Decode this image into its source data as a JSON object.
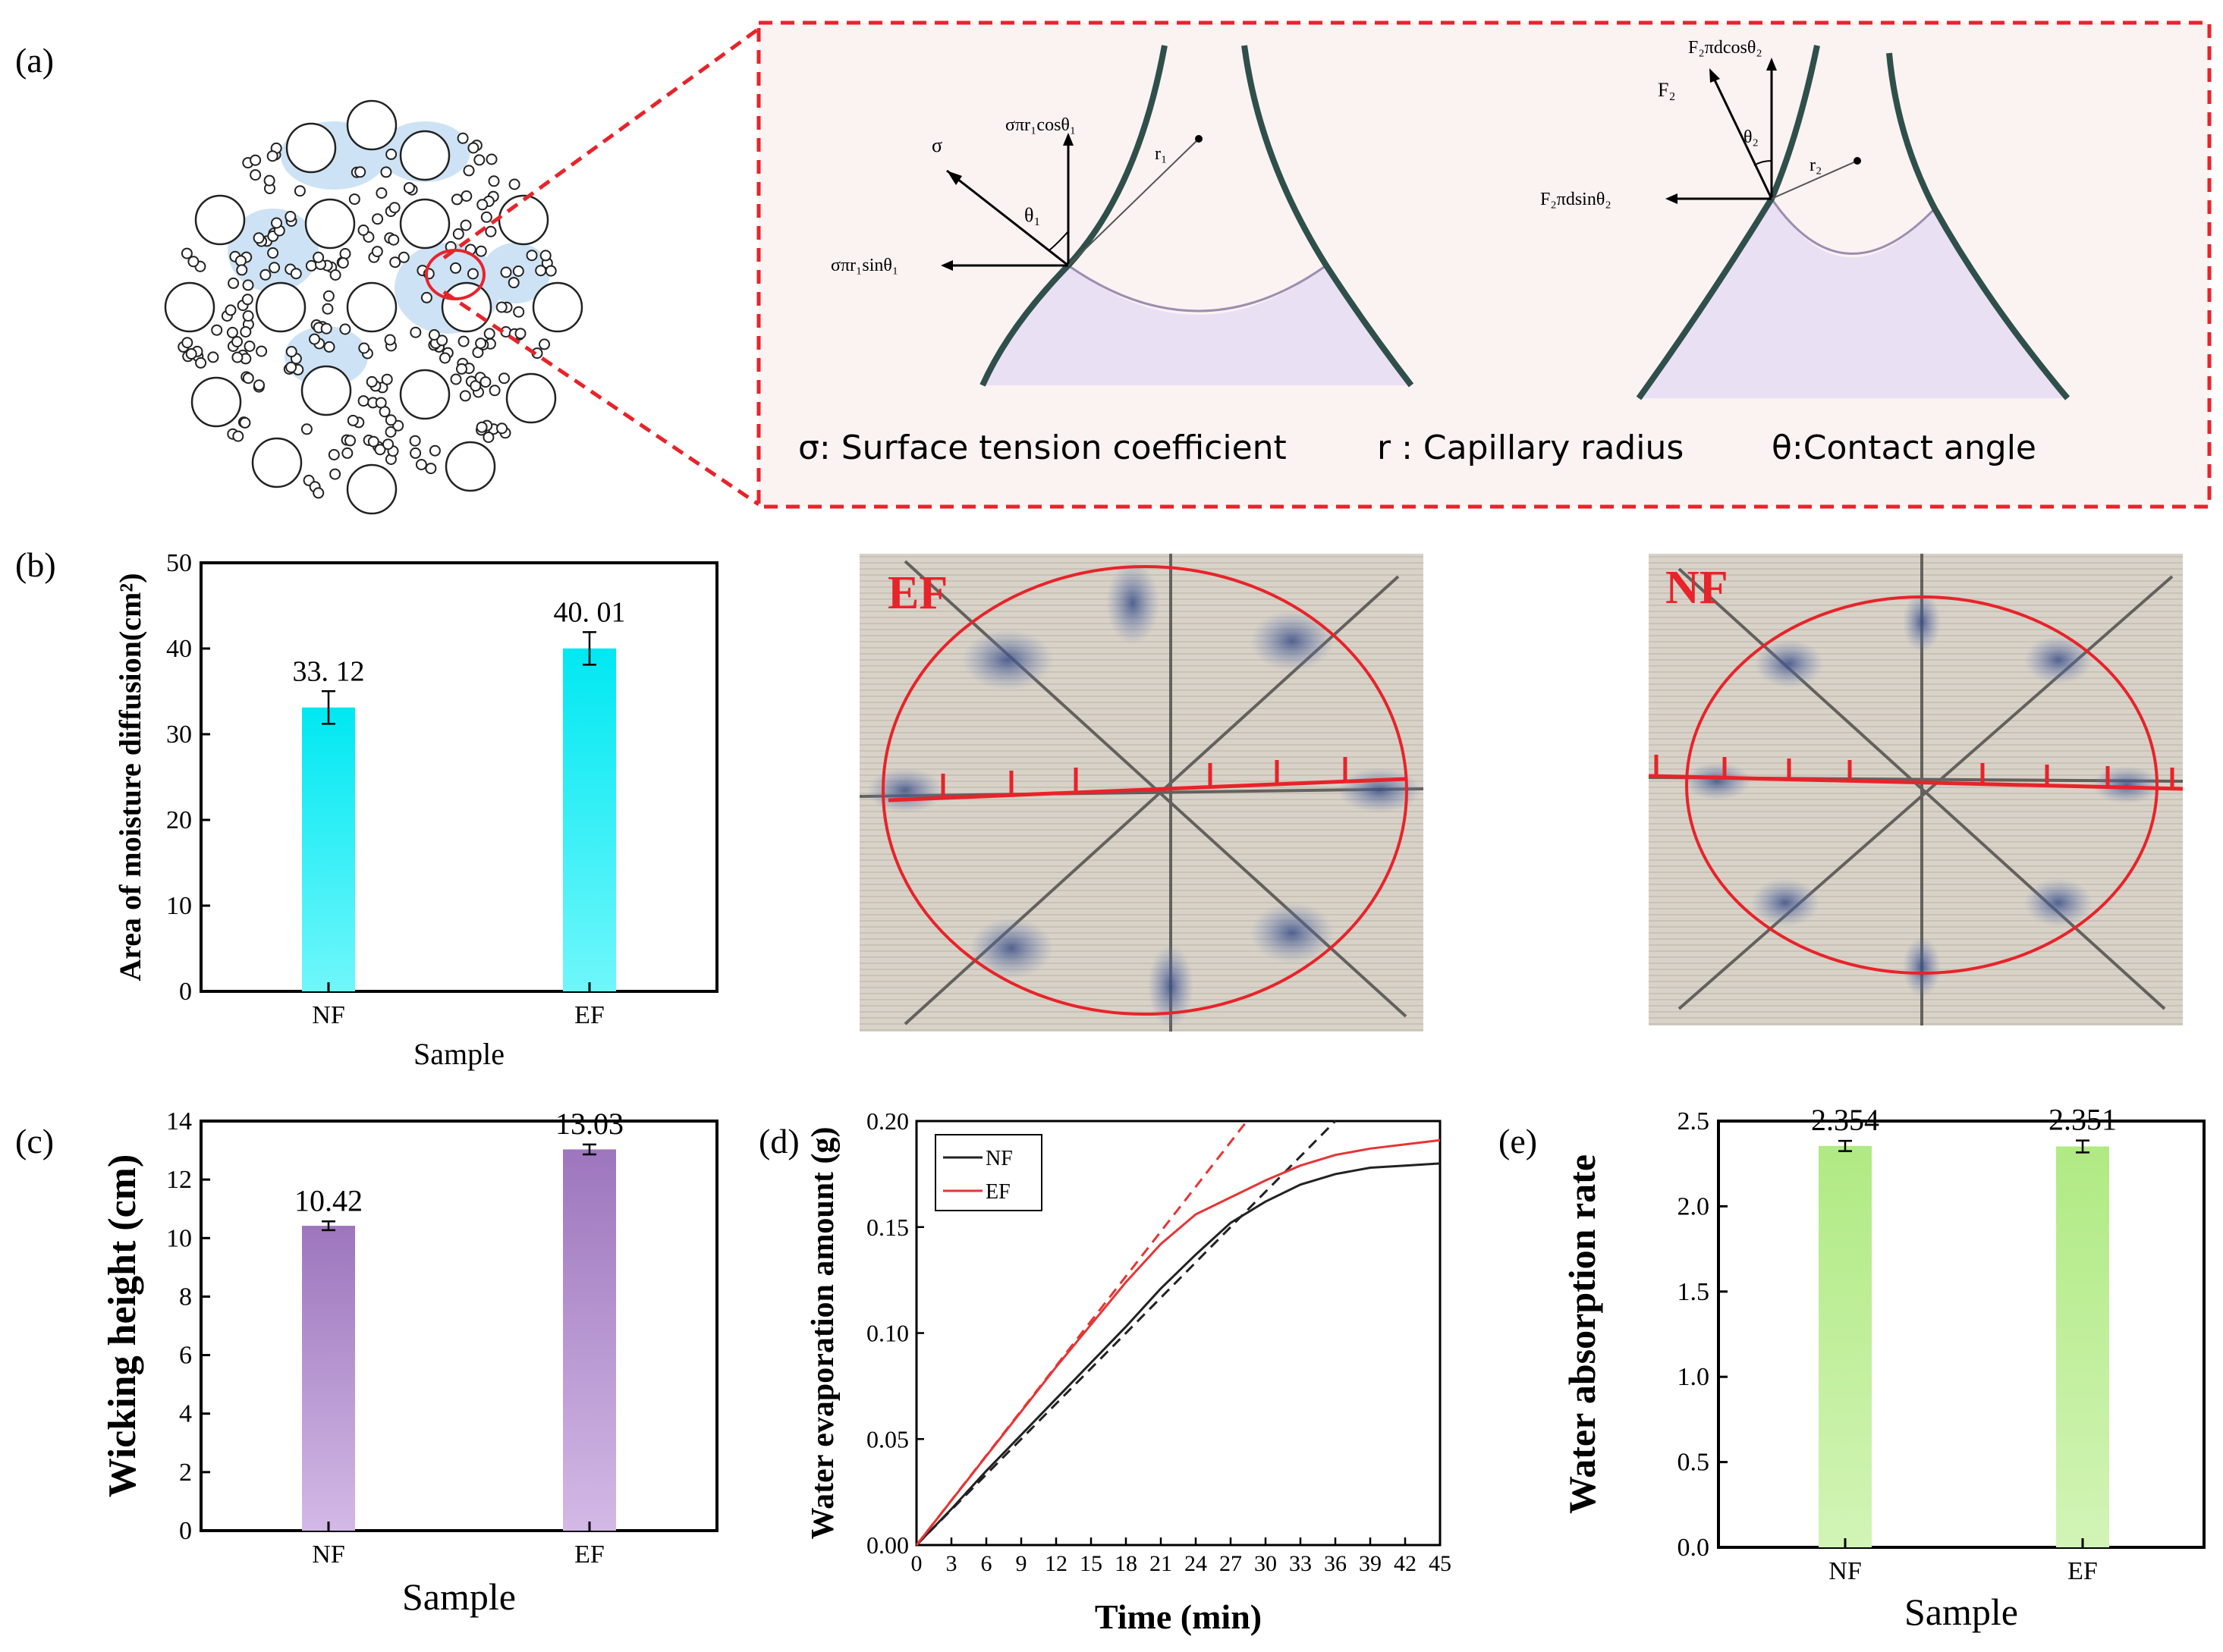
{
  "panels": {
    "a": {
      "label": "(a)",
      "forces1": {
        "sigma": "σ",
        "vertical": "σπr₁cosθ₁",
        "horizontal": "σπr₁sinθ₁",
        "radius": "r₁",
        "angle": "θ₁"
      },
      "forces2": {
        "force": "F₂",
        "vertical": "F₂πdcosθ₂",
        "horizontal": "F₂πdsinθ₂",
        "radius": "r₂",
        "angle": "θ₂"
      },
      "legend": {
        "sigma": "σ: Surface tension coefficient",
        "radius": "r : Capillary radius",
        "theta": "θ:Contact angle"
      },
      "colors": {
        "zoom_border": "#e8232a",
        "meniscus_fill": "#eae1f5",
        "wall": "#2f4f4a",
        "wet_region": "#cde3f5"
      }
    },
    "b": {
      "label": "(b)",
      "photo_ef_label": "EF",
      "photo_nf_label": "NF",
      "colors": {
        "bar": "#1de9f0",
        "photo_label": "#e8232a",
        "ellipse": "#e8232a",
        "fabric": "#d9d3c9"
      }
    },
    "c": {
      "label": "(c)",
      "colors": {
        "bar": "#a985c6"
      }
    },
    "d": {
      "label": "(d)",
      "colors": {
        "nf": "#222222",
        "ef": "#e53535"
      }
    },
    "e": {
      "label": "(e)",
      "colors": {
        "bar": "#b9ec8e"
      }
    }
  },
  "chart_data": [
    {
      "id": "b",
      "type": "bar",
      "categories": [
        "NF",
        "EF"
      ],
      "values": [
        33.12,
        40.01
      ],
      "data_labels": [
        "33. 12",
        "40. 01"
      ],
      "errors": [
        1.9,
        1.9
      ],
      "xlabel": "Sample",
      "ylabel": "Area of moisture diffusion(cm²)",
      "ylim": [
        0,
        50
      ],
      "yticks": [
        0,
        10,
        20,
        30,
        40,
        50
      ]
    },
    {
      "id": "c",
      "type": "bar",
      "categories": [
        "NF",
        "EF"
      ],
      "values": [
        10.42,
        13.03
      ],
      "data_labels": [
        "10.42",
        "13.03"
      ],
      "errors": [
        0.15,
        0.17
      ],
      "xlabel": "Sample",
      "ylabel": "Wicking height (cm)",
      "ylim": [
        0,
        14
      ],
      "yticks": [
        0,
        2,
        4,
        6,
        8,
        10,
        12,
        14
      ]
    },
    {
      "id": "d",
      "type": "line",
      "xlabel": "Time (min)",
      "ylabel": "Water evaporation amount (g)",
      "xlim": [
        0,
        45
      ],
      "ylim": [
        0,
        0.2
      ],
      "xticks": [
        0,
        3,
        6,
        9,
        12,
        15,
        18,
        21,
        24,
        27,
        30,
        33,
        36,
        39,
        42,
        45
      ],
      "yticks": [
        0,
        0.05,
        0.1,
        0.15,
        0.2
      ],
      "ytick_labels": [
        "0.00",
        "0.05",
        "0.10",
        "0.15",
        "0.20"
      ],
      "legend": "top-left",
      "series": [
        {
          "name": "NF",
          "x": [
            0,
            3,
            6,
            9,
            12,
            15,
            18,
            21,
            24,
            27,
            30,
            33,
            36,
            39,
            42,
            45
          ],
          "y": [
            0,
            0.017,
            0.035,
            0.052,
            0.069,
            0.086,
            0.103,
            0.121,
            0.137,
            0.152,
            0.162,
            0.17,
            0.175,
            0.178,
            0.179,
            0.18
          ]
        },
        {
          "name": "EF",
          "x": [
            0,
            3,
            6,
            9,
            12,
            15,
            18,
            21,
            24,
            27,
            30,
            33,
            36,
            39,
            42,
            45
          ],
          "y": [
            0,
            0.021,
            0.042,
            0.063,
            0.084,
            0.104,
            0.124,
            0.142,
            0.156,
            0.164,
            0.172,
            0.179,
            0.184,
            0.187,
            0.189,
            0.191
          ]
        }
      ],
      "tangents": [
        {
          "name": "NF",
          "x": [
            0,
            36
          ],
          "y": [
            0,
            0.2
          ]
        },
        {
          "name": "EF",
          "x": [
            0,
            28.4
          ],
          "y": [
            0,
            0.2
          ]
        }
      ]
    },
    {
      "id": "e",
      "type": "bar",
      "categories": [
        "NF",
        "EF"
      ],
      "values": [
        2.354,
        2.351
      ],
      "data_labels": [
        "2.354",
        "2.351"
      ],
      "errors": [
        0.03,
        0.035
      ],
      "xlabel": "Sample",
      "ylabel": "Water absorption rate",
      "ylim": [
        0,
        2.5
      ],
      "yticks": [
        0,
        0.5,
        1,
        1.5,
        2,
        2.5
      ],
      "ytick_labels": [
        "0.0",
        "0.5",
        "1.0",
        "1.5",
        "2.0",
        "2.5"
      ]
    }
  ]
}
